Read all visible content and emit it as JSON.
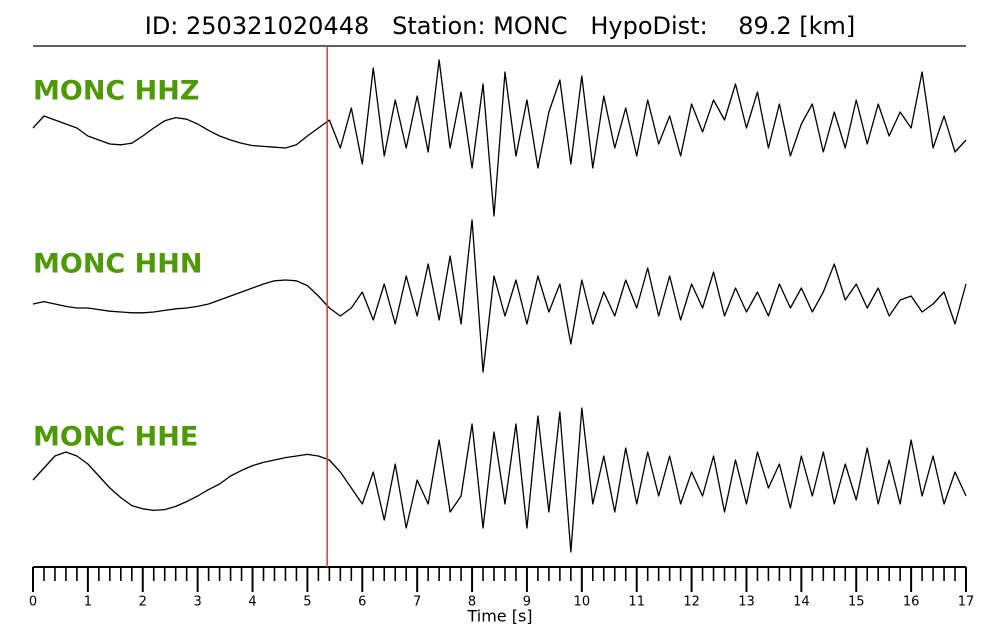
{
  "chart_data": {
    "type": "line",
    "title": "ID: 250321020448   Station: MONC   HypoDist:    89.2 [km]",
    "xlabel": "Time [s]",
    "x": [
      0,
      0.2,
      0.4,
      0.6,
      0.8,
      1,
      1.2,
      1.4,
      1.6,
      1.8,
      2,
      2.2,
      2.4,
      2.6,
      2.8,
      3,
      3.2,
      3.4,
      3.6,
      3.8,
      4,
      4.2,
      4.4,
      4.6,
      4.8,
      5,
      5.2,
      5.4,
      5.6,
      5.8,
      6,
      6.2,
      6.4,
      6.6,
      6.8,
      7,
      7.2,
      7.4,
      7.6,
      7.8,
      8,
      8.2,
      8.4,
      8.6,
      8.8,
      9,
      9.2,
      9.4,
      9.6,
      9.8,
      10,
      10.2,
      10.4,
      10.6,
      10.8,
      11,
      11.2,
      11.4,
      11.6,
      11.8,
      12,
      12.2,
      12.4,
      12.6,
      12.8,
      13,
      13.2,
      13.4,
      13.6,
      13.8,
      14,
      14.2,
      14.4,
      14.6,
      14.8,
      15,
      15.2,
      15.4,
      15.6,
      15.8,
      16,
      16.2,
      16.4,
      16.6,
      16.8,
      17
    ],
    "series": [
      {
        "name": "MONC HHZ",
        "color": "#000000",
        "label_color": "#4e9a06",
        "values": [
          0.15,
          0.3,
          0.25,
          0.2,
          0.15,
          0.05,
          0.0,
          -0.05,
          -0.06,
          -0.04,
          0.05,
          0.15,
          0.24,
          0.28,
          0.26,
          0.2,
          0.12,
          0.05,
          0.0,
          -0.04,
          -0.07,
          -0.08,
          -0.09,
          -0.1,
          -0.06,
          0.05,
          0.15,
          0.25,
          -0.1,
          0.4,
          -0.3,
          0.9,
          -0.2,
          0.5,
          -0.1,
          0.55,
          -0.15,
          1.0,
          -0.1,
          0.6,
          -0.35,
          0.7,
          -0.95,
          0.85,
          -0.2,
          0.5,
          -0.35,
          0.35,
          0.75,
          -0.3,
          0.8,
          -0.35,
          0.55,
          -0.1,
          0.4,
          -0.2,
          0.5,
          -0.05,
          0.3,
          -0.2,
          0.45,
          0.1,
          0.5,
          0.25,
          0.7,
          0.15,
          0.6,
          -0.1,
          0.45,
          -0.2,
          0.2,
          0.45,
          -0.15,
          0.35,
          -0.1,
          0.5,
          -0.05,
          0.45,
          0.05,
          0.35,
          0.15,
          0.85,
          -0.1,
          0.3,
          -0.15,
          0.0
        ]
      },
      {
        "name": "MONC HHN",
        "color": "#000000",
        "label_color": "#4e9a06",
        "values": [
          -0.05,
          -0.02,
          -0.05,
          -0.08,
          -0.1,
          -0.1,
          -0.12,
          -0.14,
          -0.15,
          -0.16,
          -0.16,
          -0.15,
          -0.13,
          -0.11,
          -0.1,
          -0.08,
          -0.05,
          0.0,
          0.05,
          0.1,
          0.15,
          0.2,
          0.24,
          0.25,
          0.24,
          0.18,
          0.05,
          -0.1,
          -0.2,
          -0.1,
          0.1,
          -0.25,
          0.2,
          -0.3,
          0.3,
          -0.2,
          0.45,
          -0.25,
          0.55,
          -0.3,
          1.0,
          -0.9,
          0.3,
          -0.2,
          0.25,
          -0.3,
          0.3,
          -0.15,
          0.2,
          -0.55,
          0.25,
          -0.3,
          0.1,
          -0.2,
          0.25,
          -0.1,
          0.4,
          -0.2,
          0.3,
          -0.25,
          0.2,
          -0.1,
          0.35,
          -0.2,
          0.15,
          -0.15,
          0.1,
          -0.2,
          0.2,
          -0.1,
          0.15,
          -0.15,
          0.1,
          0.45,
          0.0,
          0.2,
          -0.1,
          0.15,
          -0.2,
          0.0,
          0.05,
          -0.15,
          -0.05,
          0.1,
          -0.3,
          0.2
        ]
      },
      {
        "name": "MONC HHE",
        "color": "#000000",
        "label_color": "#4e9a06",
        "values": [
          0.0,
          0.15,
          0.3,
          0.35,
          0.3,
          0.2,
          0.05,
          -0.1,
          -0.22,
          -0.32,
          -0.36,
          -0.38,
          -0.37,
          -0.33,
          -0.27,
          -0.2,
          -0.12,
          -0.05,
          0.05,
          0.12,
          0.18,
          0.22,
          0.25,
          0.28,
          0.3,
          0.32,
          0.3,
          0.25,
          0.1,
          -0.1,
          -0.3,
          0.1,
          -0.5,
          0.2,
          -0.6,
          0.0,
          -0.3,
          0.5,
          -0.4,
          -0.2,
          0.7,
          -0.6,
          0.6,
          -0.3,
          0.7,
          -0.6,
          0.8,
          -0.4,
          0.85,
          -0.9,
          0.9,
          -0.3,
          0.3,
          -0.4,
          0.4,
          -0.3,
          0.35,
          -0.2,
          0.3,
          -0.3,
          0.1,
          -0.2,
          0.3,
          -0.4,
          0.25,
          -0.3,
          0.35,
          -0.1,
          0.2,
          -0.35,
          0.3,
          -0.2,
          0.35,
          -0.3,
          0.2,
          -0.25,
          0.4,
          -0.3,
          0.25,
          -0.3,
          0.5,
          -0.2,
          0.3,
          -0.3,
          0.1,
          -0.2
        ]
      }
    ],
    "ylim": [
      -1,
      1
    ],
    "pick_time": 5.36,
    "pick_color": "#e8312c",
    "xlim": [
      0,
      17
    ],
    "xticks": [
      0,
      1,
      2,
      3,
      4,
      5,
      6,
      7,
      8,
      9,
      10,
      11,
      12,
      13,
      14,
      15,
      16,
      17
    ],
    "xminorticks": [
      0.2,
      0.4,
      0.6,
      0.8,
      1.2,
      1.4,
      1.6,
      1.8,
      2.2,
      2.4,
      2.6,
      2.8,
      3.2,
      3.4,
      3.6,
      3.8,
      4.2,
      4.4,
      4.6,
      4.8,
      5.2,
      5.4,
      5.6,
      5.8,
      6.2,
      6.4,
      6.6,
      6.8,
      7.2,
      7.4,
      7.6,
      7.8,
      8.2,
      8.4,
      8.6,
      8.8,
      9.2,
      9.4,
      9.6,
      9.8,
      10.2,
      10.4,
      10.6,
      10.8,
      11.2,
      11.4,
      11.6,
      11.8,
      12.2,
      12.4,
      12.6,
      12.8,
      13.2,
      13.4,
      13.6,
      13.8,
      14.2,
      14.4,
      14.6,
      14.8,
      15.2,
      15.4,
      15.6,
      15.8,
      16.2,
      16.4,
      16.6,
      16.8
    ]
  }
}
